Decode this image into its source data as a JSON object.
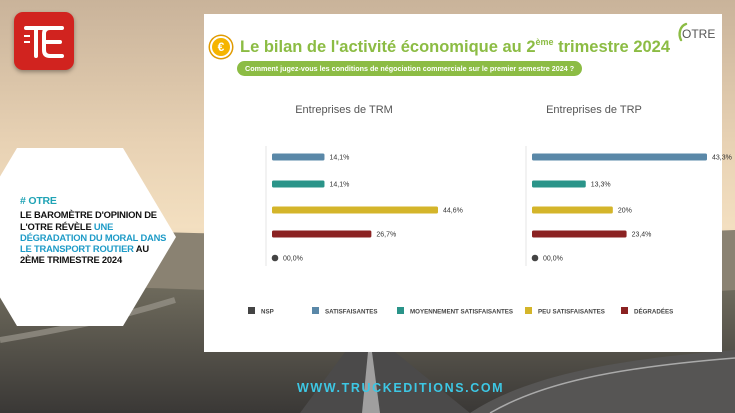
{
  "hashtag": "# OTRE",
  "headline_pre": "Le baromètre d'opinion de l'OTRE révèle ",
  "headline_highlight": "une dégradation du moral dans le transport routier",
  "headline_post": " au 2ème trimestre 2024",
  "panel": {
    "title_pre": "Le bilan de l'activité économique au 2",
    "title_sup": "ème",
    "title_post": " trimestre 2024",
    "subtitle": "Comment jugez-vous les conditions de négociation commerciale sur le premier semestre 2024 ?",
    "coin_symbol": "€",
    "otre_logo_text": "OTRE"
  },
  "footer_url": "WWW.TRUCKEDITIONS.COM",
  "colors": {
    "nsp": "#444444",
    "satisfaisantes": "#5a88a8",
    "moyennement_satisfaisantes": "#2a9489",
    "peu_satisfaisantes": "#d4b52a",
    "degradees": "#8b2222",
    "accent_green": "#8cbc44",
    "url_cyan": "#3dc7e4",
    "logo_red": "#d1231f"
  },
  "chart_data": [
    {
      "type": "bar",
      "title": "Entreprises de TRM",
      "categories": [
        "Satisfaisantes",
        "Moyennement satisfaisantes",
        "Peu satisfaisantes",
        "Dégradées",
        "NSP"
      ],
      "values": [
        14.1,
        14.1,
        44.6,
        26.7,
        0.0
      ],
      "labels": [
        "14,1%",
        "14,1%",
        "44,6%",
        "26,7%",
        "00,0%"
      ],
      "xlim": [
        0,
        45
      ]
    },
    {
      "type": "bar",
      "title": "Entreprises de TRP",
      "categories": [
        "Satisfaisantes",
        "Moyennement satisfaisantes",
        "Peu satisfaisantes",
        "Dégradées",
        "NSP"
      ],
      "values": [
        43.3,
        13.3,
        20,
        23.4,
        0.0
      ],
      "labels": [
        "43,3%",
        "13,3%",
        "20%",
        "23,4%",
        "00,0%"
      ],
      "xlim": [
        0,
        45
      ]
    }
  ],
  "legend": [
    {
      "key": "nsp",
      "label": "NSP"
    },
    {
      "key": "satisfaisantes",
      "label": "SATISFAISANTES"
    },
    {
      "key": "moyennement_satisfaisantes",
      "label": "MOYENNEMENT SATISFAISANTES"
    },
    {
      "key": "peu_satisfaisantes",
      "label": "PEU SATISFAISANTES"
    },
    {
      "key": "degradees",
      "label": "DÉGRADÉES"
    }
  ]
}
